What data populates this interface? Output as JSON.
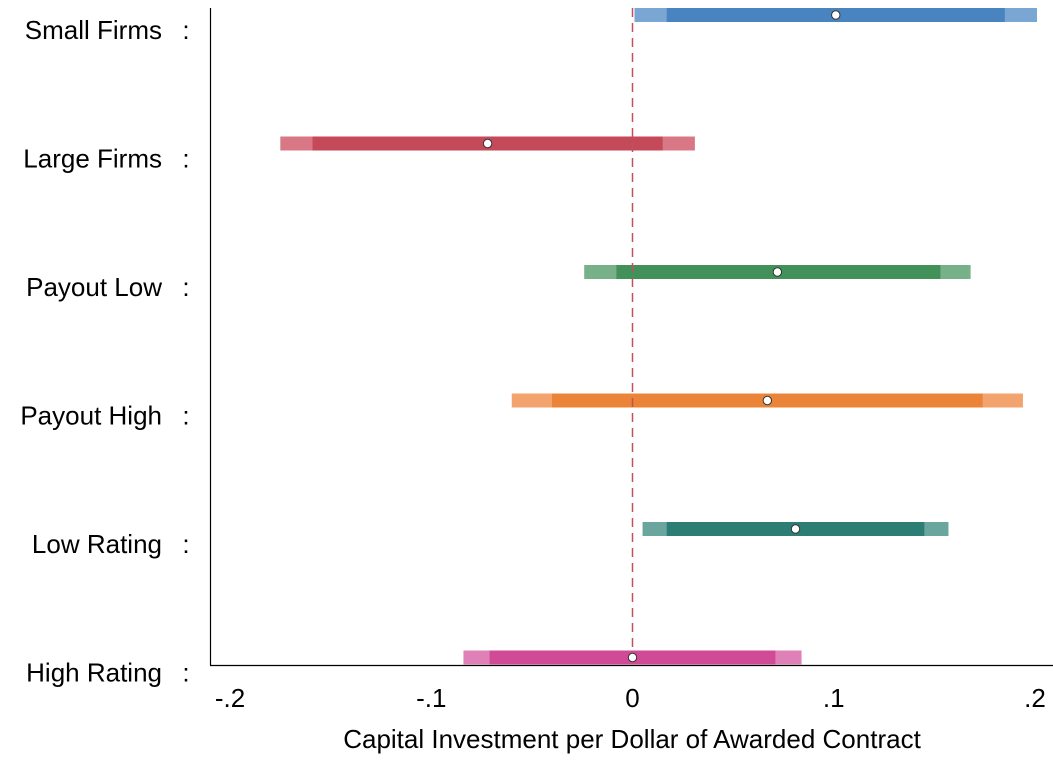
{
  "chart_data": {
    "type": "coefficient-plot",
    "title": "",
    "xlabel": "Capital Investment per Dollar of Awarded Contract",
    "ylabel": "",
    "xlim": [
      -0.2,
      0.2
    ],
    "x_ticks": [
      {
        "value": -0.2,
        "label": "-.2"
      },
      {
        "value": -0.1,
        "label": "-.1"
      },
      {
        "value": 0,
        "label": "0"
      },
      {
        "value": 0.1,
        "label": ".1"
      },
      {
        "value": 0.2,
        "label": ".2"
      }
    ],
    "reference_line": {
      "x": 0,
      "style": "dashed",
      "color": "#c0505a"
    },
    "label_separator": ":",
    "grid": false,
    "legend": "none",
    "series": [
      {
        "label": "Small Firms",
        "estimate": 0.101,
        "ci95": [
          0.001,
          0.201
        ],
        "ci90": [
          0.017,
          0.185
        ],
        "color_inner": "#4a84c0",
        "color_outer": "#7aa6d4"
      },
      {
        "label": "Large Firms",
        "estimate": -0.072,
        "ci95": [
          -0.175,
          0.031
        ],
        "ci90": [
          -0.159,
          0.015
        ],
        "color_inner": "#c44a5a",
        "color_outer": "#d97884"
      },
      {
        "label": "Payout Low",
        "estimate": 0.072,
        "ci95": [
          -0.024,
          0.168
        ],
        "ci90": [
          -0.008,
          0.153
        ],
        "color_inner": "#42915a",
        "color_outer": "#78b08a"
      },
      {
        "label": "Payout High",
        "estimate": 0.067,
        "ci95": [
          -0.06,
          0.194
        ],
        "ci90": [
          -0.04,
          0.174
        ],
        "color_inner": "#eb8438",
        "color_outer": "#f2a36e"
      },
      {
        "label": "Low Rating",
        "estimate": 0.081,
        "ci95": [
          0.005,
          0.157
        ],
        "ci90": [
          0.017,
          0.145
        ],
        "color_inner": "#2c7e74",
        "color_outer": "#6aa59e"
      },
      {
        "label": "High Rating",
        "estimate": 0,
        "ci95": [
          -0.084,
          0.084
        ],
        "ci90": [
          -0.071,
          0.071
        ],
        "color_inner": "#d04a96",
        "color_outer": "#df80b6"
      }
    ]
  }
}
